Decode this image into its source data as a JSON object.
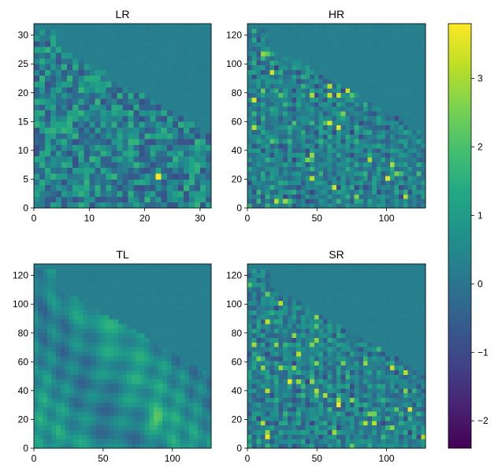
{
  "chart_data": [
    {
      "type": "heatmap",
      "title": "LR",
      "xlim": [
        0,
        32
      ],
      "ylim": [
        0,
        32
      ],
      "xticks": [
        "0",
        "10",
        "20",
        "30"
      ],
      "yticks": [
        "0",
        "5",
        "10",
        "15",
        "20",
        "25",
        "30"
      ],
      "xtick_values": [
        0,
        10,
        20,
        30
      ],
      "ytick_values": [
        0,
        5,
        10,
        15,
        20,
        25,
        30
      ],
      "grid_size": 32,
      "texture": "blocky"
    },
    {
      "type": "heatmap",
      "title": "HR",
      "xlim": [
        0,
        128
      ],
      "ylim": [
        0,
        128
      ],
      "xticks": [
        "0",
        "50",
        "100"
      ],
      "yticks": [
        "0",
        "20",
        "40",
        "60",
        "80",
        "100",
        "120"
      ],
      "xtick_values": [
        0,
        50,
        100
      ],
      "ytick_values": [
        0,
        20,
        40,
        60,
        80,
        100,
        120
      ],
      "grid_size": 128,
      "texture": "sharp"
    },
    {
      "type": "heatmap",
      "title": "TL",
      "xlim": [
        0,
        128
      ],
      "ylim": [
        0,
        128
      ],
      "xticks": [
        "0",
        "50",
        "100"
      ],
      "yticks": [
        "0",
        "20",
        "40",
        "60",
        "80",
        "100",
        "120"
      ],
      "xtick_values": [
        0,
        50,
        100
      ],
      "ytick_values": [
        0,
        20,
        40,
        60,
        80,
        100,
        120
      ],
      "grid_size": 128,
      "texture": "smooth"
    },
    {
      "type": "heatmap",
      "title": "SR",
      "xlim": [
        0,
        128
      ],
      "ylim": [
        0,
        128
      ],
      "xticks": [
        "0",
        "50",
        "100"
      ],
      "yticks": [
        "0",
        "20",
        "40",
        "60",
        "80",
        "100",
        "120"
      ],
      "xtick_values": [
        0,
        50,
        100
      ],
      "ytick_values": [
        0,
        20,
        40,
        60,
        80,
        100,
        120
      ],
      "grid_size": 128,
      "texture": "sharp"
    }
  ],
  "colorbar": {
    "colormap": "viridis",
    "range": [
      -2.4,
      3.8
    ],
    "ticks": [
      "3",
      "2",
      "1",
      "0",
      "−1",
      "−2"
    ],
    "tick_values": [
      3,
      2,
      1,
      0,
      -1,
      -2
    ]
  }
}
